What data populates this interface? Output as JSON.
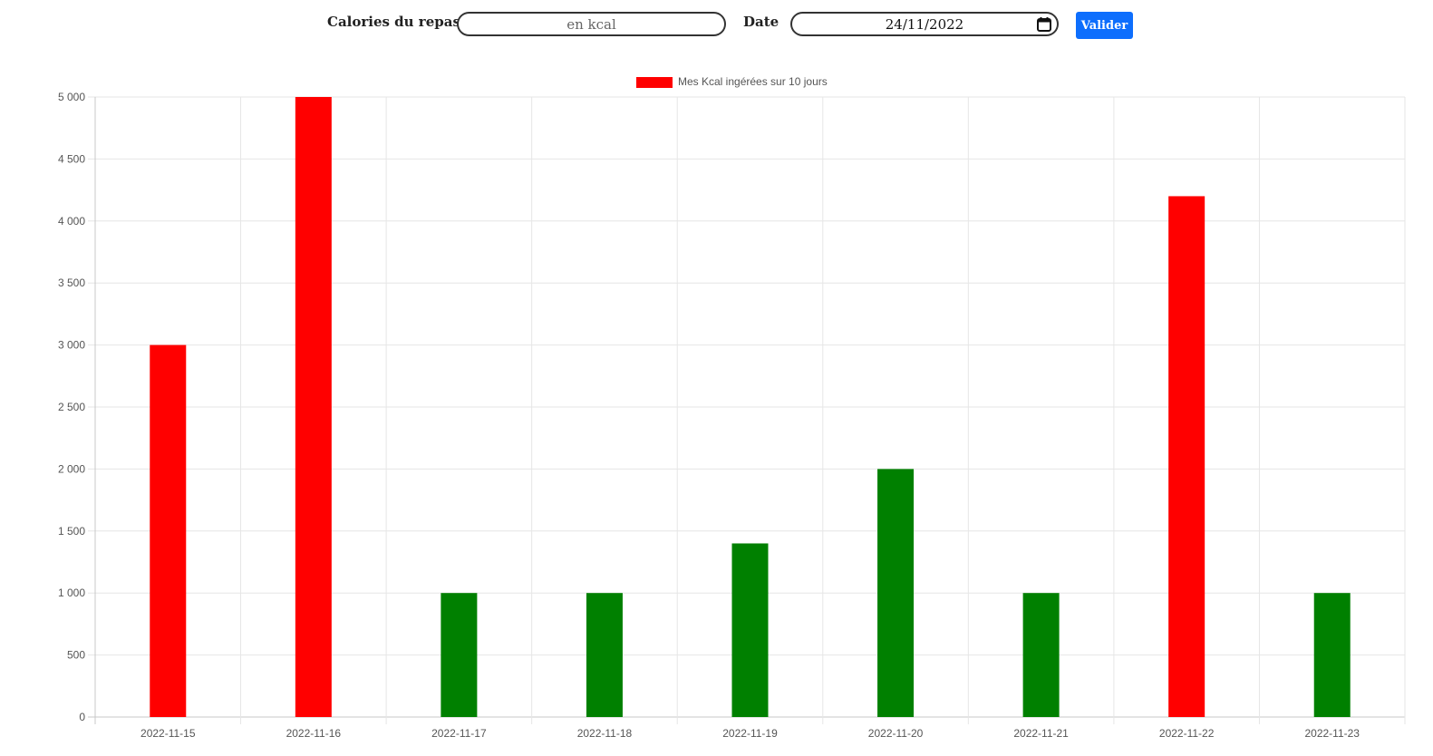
{
  "form": {
    "calories_label": "Calories du repas",
    "calories_value": "",
    "calories_placeholder": "en kcal",
    "date_label": "Date",
    "date_value": "24/11/2022",
    "submit_label": "Valider"
  },
  "chart_data": {
    "type": "bar",
    "legend": {
      "label": "Mes Kcal ingérées sur 10 jours",
      "position": "top",
      "swatch_color": "#ff0000"
    },
    "categories": [
      "2022-11-15",
      "2022-11-16",
      "2022-11-17",
      "2022-11-18",
      "2022-11-19",
      "2022-11-20",
      "2022-11-21",
      "2022-11-22",
      "2022-11-23"
    ],
    "values": [
      3000,
      5000,
      1000,
      1000,
      1400,
      2000,
      1000,
      4200,
      1000
    ],
    "bar_colors": [
      "#ff0000",
      "#ff0000",
      "#008000",
      "#008000",
      "#008000",
      "#008000",
      "#008000",
      "#ff0000",
      "#008000"
    ],
    "ylim": [
      0,
      5000
    ],
    "ytick_step": 500,
    "ytick_labels": [
      "0",
      "500",
      "1 000",
      "1 500",
      "2 000",
      "2 500",
      "3 000",
      "3 500",
      "4 000",
      "4 500",
      "5 000"
    ],
    "grid": true
  }
}
